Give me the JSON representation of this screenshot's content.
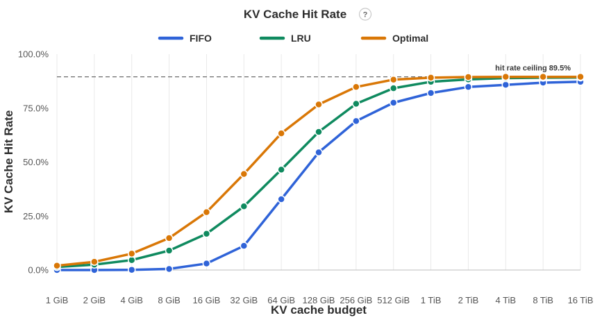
{
  "chart_data": {
    "type": "line",
    "title": "KV Cache Hit Rate",
    "help_icon": "question-mark-icon",
    "xlabel": "KV cache budget",
    "ylabel": "KV Cache Hit Rate",
    "categories": [
      "1 GiB",
      "2 GiB",
      "4 GiB",
      "8 GiB",
      "16 GiB",
      "32 GiB",
      "64 GiB",
      "128 GiB",
      "256 GiB",
      "512 GiB",
      "1 TiB",
      "2 TiB",
      "4 TiB",
      "8 TiB",
      "16 TiB"
    ],
    "y_ticks": [
      "0.0%",
      "25.0%",
      "50.0%",
      "75.0%",
      "100.0%"
    ],
    "ylim": [
      0,
      100
    ],
    "grid": "vertical",
    "legend_position": "top-center",
    "series": [
      {
        "name": "FIFO",
        "color": "#2f63d8",
        "values": [
          0.0,
          0.0,
          0.1,
          0.5,
          3.0,
          11.2,
          32.8,
          54.5,
          69.0,
          77.5,
          82.0,
          84.8,
          85.8,
          86.8,
          87.2
        ]
      },
      {
        "name": "LRU",
        "color": "#0f8a5f",
        "values": [
          1.4,
          2.5,
          4.6,
          9.0,
          16.8,
          29.5,
          46.5,
          64.0,
          77.0,
          84.2,
          87.2,
          88.3,
          88.9,
          89.1,
          89.2
        ]
      },
      {
        "name": "Optimal",
        "color": "#d97706",
        "values": [
          2.0,
          3.8,
          7.6,
          14.8,
          26.8,
          44.5,
          63.3,
          76.7,
          84.8,
          88.2,
          89.1,
          89.4,
          89.5,
          89.5,
          89.5
        ]
      }
    ],
    "annotations": [
      {
        "type": "reference-line",
        "y": 89.5,
        "label": "hit rate ceiling 89.5%"
      }
    ]
  }
}
